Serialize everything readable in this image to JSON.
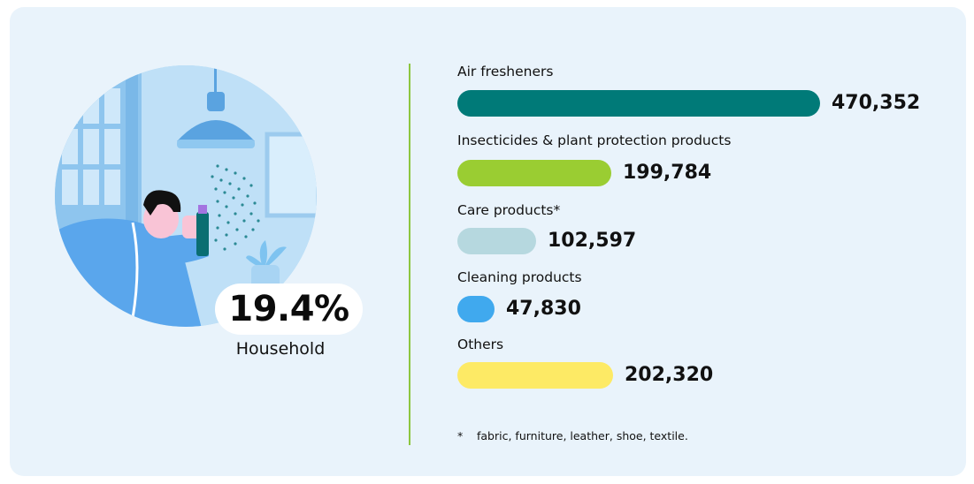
{
  "household": {
    "percent": "19.4%",
    "label": "Household"
  },
  "chart_data": {
    "type": "bar",
    "orientation": "horizontal",
    "categories": [
      "Air fresheners",
      "Insecticides & plant protection products",
      "Care products*",
      "Cleaning products",
      "Others"
    ],
    "values": [
      470352,
      199784,
      102597,
      47830,
      202320
    ],
    "value_labels": [
      "470,352",
      "199,784",
      "102,597",
      "47,830",
      "202,320"
    ],
    "colors": [
      "#007a78",
      "#9acd32",
      "#b6d8df",
      "#40a9ee",
      "#fdea65"
    ],
    "grid": false,
    "legend": "none"
  },
  "footnote": {
    "marker": "*",
    "text": "fabric, furniture, leather, shoe, textile."
  }
}
